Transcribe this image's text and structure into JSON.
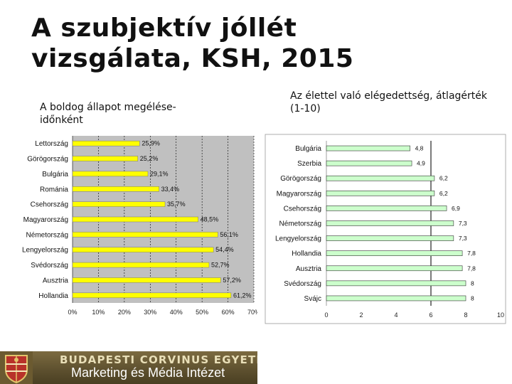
{
  "title": "A szubjektív jóllét vizsgálata, KSH, 2015",
  "left_subtitle": "A boldog állapot megélése-időnként",
  "right_subtitle": "Az élettel való elégedettség, átlagérték (1-10)",
  "footer": {
    "university": "BUDAPESTI CORVINUS EGYETEM",
    "institute": "Marketing és Média Intézet"
  },
  "colors": {
    "bar": "#ffff00",
    "bar_right": "#ccffcc",
    "plot_bg": "#c0c0c0",
    "footer_bg": "#5c4f2e"
  },
  "chart_data": [
    {
      "type": "bar",
      "orientation": "horizontal",
      "categories": [
        "Lettország",
        "Görögország",
        "Bulgária",
        "Románia",
        "Csehország",
        "Magyarország",
        "Németország",
        "Lengyelország",
        "Svédország",
        "Ausztria",
        "Hollandia"
      ],
      "values": [
        25.9,
        25.2,
        29.1,
        33.4,
        35.7,
        48.5,
        56.1,
        54.4,
        52.7,
        57.2,
        61.2
      ],
      "value_labels": [
        "25,9%",
        "25,2%",
        "29,1%",
        "33,4%",
        "35,7%",
        "48,5%",
        "56,1%",
        "54,4%",
        "52,7%",
        "57,2%",
        "61,2%"
      ],
      "x_ticks": [
        "0%",
        "10%",
        "20%",
        "30%",
        "40%",
        "50%",
        "60%",
        "70%"
      ],
      "xlim": [
        0,
        70
      ],
      "grid": true
    },
    {
      "type": "bar",
      "orientation": "horizontal",
      "categories": [
        "Bulgária",
        "Szerbia",
        "Görögország",
        "Magyarország",
        "Csehország",
        "Németország",
        "Lengyelország",
        "Hollandia",
        "Ausztria",
        "Svédország",
        "Svájc"
      ],
      "values": [
        4.8,
        4.9,
        6.2,
        6.2,
        6.9,
        7.3,
        7.3,
        7.8,
        7.8,
        8,
        8
      ],
      "value_labels": [
        "4,8",
        "4,9",
        "6,2",
        "6,2",
        "6,9",
        "7,3",
        "7,3",
        "7,8",
        "7,8",
        "8",
        "8"
      ],
      "x_ticks": [
        "0",
        "2",
        "4",
        "6",
        "8",
        "10"
      ],
      "xlim": [
        0,
        10
      ],
      "reference_line": 6
    }
  ]
}
